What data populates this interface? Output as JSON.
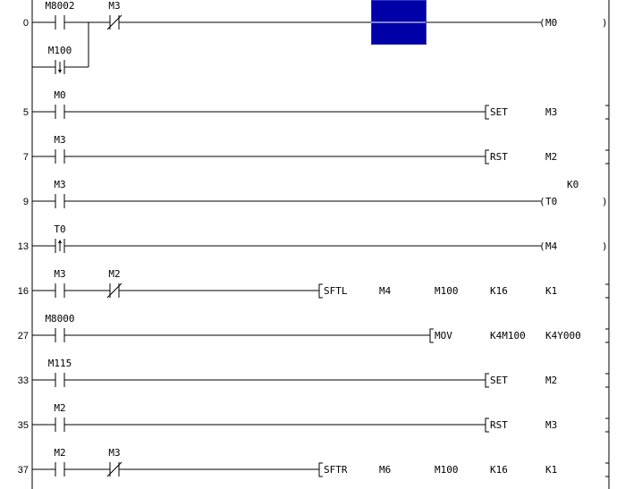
{
  "colors": {
    "line": "#000000",
    "cursor_fill": "#0000a8",
    "cursor_border": "#ffffff"
  },
  "rungs": [
    {
      "step": "0",
      "contacts": [
        {
          "label": "M8002",
          "type": "normally-open"
        },
        {
          "label": "M3",
          "type": "normally-closed"
        }
      ],
      "branch": {
        "label": "M100",
        "type": "falling-edge"
      },
      "output": {
        "kind": "coil",
        "device": "M0"
      }
    },
    {
      "step": "5",
      "contacts": [
        {
          "label": "M0",
          "type": "normally-open"
        }
      ],
      "output": {
        "kind": "instruction",
        "name": "SET",
        "operands": [
          "M3"
        ]
      }
    },
    {
      "step": "7",
      "contacts": [
        {
          "label": "M3",
          "type": "normally-open"
        }
      ],
      "output": {
        "kind": "instruction",
        "name": "RST",
        "operands": [
          "M2"
        ]
      }
    },
    {
      "step": "9",
      "contacts": [
        {
          "label": "M3",
          "type": "normally-open"
        }
      ],
      "output": {
        "kind": "coil",
        "device": "T0",
        "setting": "K0"
      }
    },
    {
      "step": "13",
      "contacts": [
        {
          "label": "T0",
          "type": "rising-edge"
        }
      ],
      "output": {
        "kind": "coil",
        "device": "M4"
      }
    },
    {
      "step": "16",
      "contacts": [
        {
          "label": "M3",
          "type": "normally-open"
        },
        {
          "label": "M2",
          "type": "normally-closed"
        }
      ],
      "output": {
        "kind": "instruction",
        "name": "SFTL",
        "operands": [
          "M4",
          "M100",
          "K16",
          "K1"
        ]
      }
    },
    {
      "step": "27",
      "contacts": [
        {
          "label": "M8000",
          "type": "normally-open"
        }
      ],
      "output": {
        "kind": "instruction",
        "name": "MOV",
        "operands": [
          "K4M100",
          "K4Y000"
        ]
      }
    },
    {
      "step": "33",
      "contacts": [
        {
          "label": "M115",
          "type": "normally-open"
        }
      ],
      "output": {
        "kind": "instruction",
        "name": "SET",
        "operands": [
          "M2"
        ]
      }
    },
    {
      "step": "35",
      "contacts": [
        {
          "label": "M2",
          "type": "normally-open"
        }
      ],
      "output": {
        "kind": "instruction",
        "name": "RST",
        "operands": [
          "M3"
        ]
      }
    },
    {
      "step": "37",
      "contacts": [
        {
          "label": "M2",
          "type": "normally-open"
        },
        {
          "label": "M3",
          "type": "normally-closed"
        }
      ],
      "output": {
        "kind": "instruction",
        "name": "SFTR",
        "operands": [
          "M6",
          "M100",
          "K16",
          "K1"
        ]
      }
    }
  ]
}
